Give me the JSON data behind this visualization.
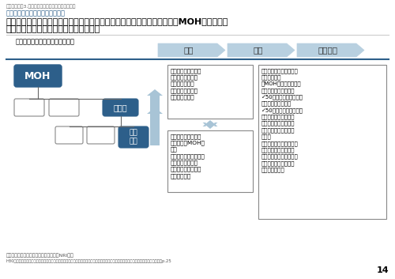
{
  "bg_color": "#ffffff",
  "slide_title_small": "マレーシア／3.政策・制度・医療機器に対する規制",
  "slide_title": "地方の公的医療施設における調達",
  "main_title_line1": "地方の公的医療施設に「シンプル医療機器」を販売するためには、まず、MOH地方局の調",
  "main_title_line2": "達希望リストに掲載されることが必要。",
  "diagram_title": "地方の公的医療施設における調達",
  "phase1": "要求",
  "phase2": "承認",
  "phase3": "調達実施",
  "box_moh": "MOH",
  "box_chihhoukyoku": "地方局",
  "box_iryoushisetsu": "医療\n施設",
  "text_request_box": "・各医療施設の要求\nを集約してMOHに\n提出\n・独自の判断として、\n地域内で導入すべ\nき医療機器を要求す\nることもある",
  "text_approval_box": "・希望を踏まえ、調\n達の実行可否や、\n可の場合の予算\n額について地方局\nに承認を与える",
  "text_procurement_box": "・金額に応じたプロセス\nで調達を実施\n・MOHが全国分を一括\n　調達することもある\n✓50万リンギット未満：\n　見積に基づく購入\n✓50万リンギット以上：\n　公開入札。仕様と価\n　格の評価を独立して\n　実施し、購入判断さ\n　れる\n・国内生産品がある場合\nは、優先的に調達され\nる。ローカルコンテンツ\nに関する明確な規定は\nないとみられる",
  "footnote1": "出所：公開資料及びヒアリングをもとにNRI整理",
  "footnote2": "H30年度・株式会社野村総合研究所「医療ヘルスケア拠点機器促進事業（国際展開体制整備支援事業）マレーシア中小企業海外調査報告」p.25",
  "page_number": "14",
  "phase_box_color": "#b8d0e0",
  "moh_box_color": "#2d5f8a",
  "chiho_box_color": "#2d5f8a",
  "iryou_box_color": "#2d5f8a",
  "empty_box_color": "#ffffff",
  "empty_box_border": "#888888",
  "text_box_border": "#888888",
  "title_color": "#2d5f8a",
  "arrow_color": "#a8c4d6",
  "line_color": "#2d5f8a"
}
